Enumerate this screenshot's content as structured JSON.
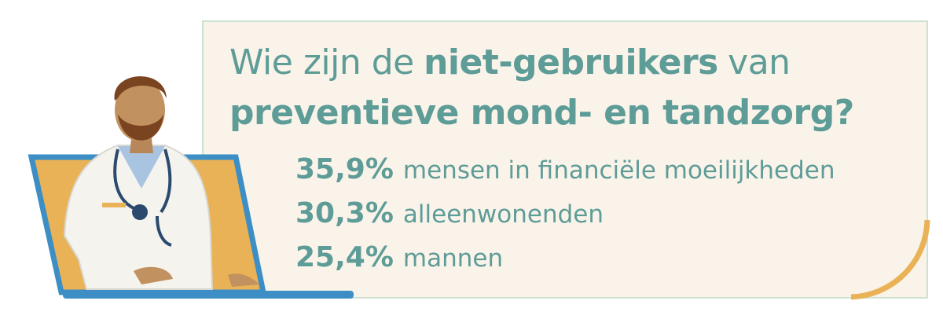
{
  "title": {
    "lines": [
      [
        {
          "text": "Wie zijn de",
          "bold": false
        },
        {
          "text": "niet-gebruikers",
          "bold": true
        },
        {
          "text": "van",
          "bold": false
        }
      ],
      [
        {
          "text": "preventieve mond- en tandzorg?",
          "bold": true
        }
      ]
    ]
  },
  "stats": [
    {
      "value": "35,9%",
      "label": "mensen in financiële moeilijkheden"
    },
    {
      "value": "30,3%",
      "label": "alleenwonenden"
    },
    {
      "value": "25,4%",
      "label": "mannen"
    }
  ]
}
